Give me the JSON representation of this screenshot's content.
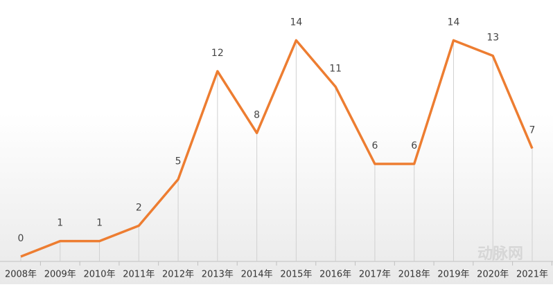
{
  "chart_data": {
    "type": "line",
    "categories": [
      "2008年",
      "2009年",
      "2010年",
      "2011年",
      "2012年",
      "2013年",
      "2014年",
      "2015年",
      "2016年",
      "2017年",
      "2018年",
      "2019年",
      "2020年",
      "2021年"
    ],
    "values": [
      0,
      1,
      1,
      2,
      5,
      12,
      8,
      14,
      11,
      6,
      6,
      14,
      13,
      7
    ],
    "color": "#ed7d31",
    "ylim": [
      0,
      15
    ],
    "drop_lines": true,
    "watermark": "动脉网"
  }
}
